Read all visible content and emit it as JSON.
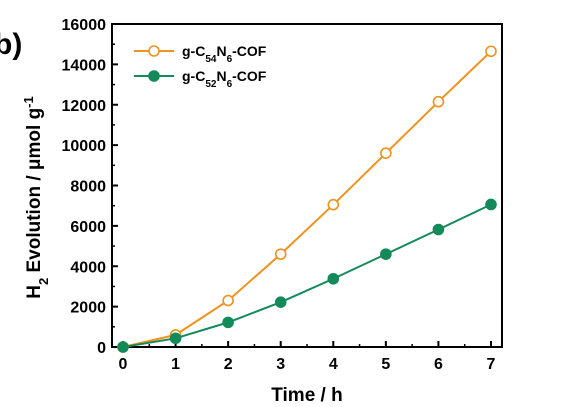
{
  "panel_label": "b)",
  "chart_data": {
    "type": "line",
    "title": "",
    "xlabel": "Time / h",
    "ylabel": {
      "parts": [
        {
          "text": "H",
          "style": "normal"
        },
        {
          "text": "2",
          "style": "sub"
        },
        {
          "text": " Evolution / ",
          "style": "normal"
        },
        {
          "text": "μ",
          "style": "normal"
        },
        {
          "text": "mol g",
          "style": "normal"
        },
        {
          "text": "-1",
          "style": "sup"
        }
      ]
    },
    "xlim": [
      0,
      7
    ],
    "ylim": [
      0,
      16000
    ],
    "xticks": [
      0,
      1,
      2,
      3,
      4,
      5,
      6,
      7
    ],
    "yticks": [
      0,
      2000,
      4000,
      6000,
      8000,
      10000,
      12000,
      14000,
      16000
    ],
    "x": [
      0,
      1,
      2,
      3,
      4,
      5,
      6,
      7
    ],
    "grid": false,
    "legend_position": "top-left",
    "series": [
      {
        "name_parts": [
          {
            "text": "g-C",
            "style": "normal"
          },
          {
            "text": "54",
            "style": "sub"
          },
          {
            "text": "N",
            "style": "normal"
          },
          {
            "text": "6",
            "style": "sub"
          },
          {
            "text": "-COF",
            "style": "normal"
          }
        ],
        "values": [
          0,
          600,
          2300,
          4600,
          7050,
          9600,
          12150,
          14650
        ],
        "color": "#f0921e",
        "marker": "open-circle"
      },
      {
        "name_parts": [
          {
            "text": "g-C",
            "style": "normal"
          },
          {
            "text": "52",
            "style": "sub"
          },
          {
            "text": "N",
            "style": "normal"
          },
          {
            "text": "6",
            "style": "sub"
          },
          {
            "text": "-COF",
            "style": "normal"
          }
        ],
        "values": [
          0,
          430,
          1220,
          2220,
          3380,
          4600,
          5820,
          7060
        ],
        "color": "#128a59",
        "marker": "filled-circle"
      }
    ]
  }
}
